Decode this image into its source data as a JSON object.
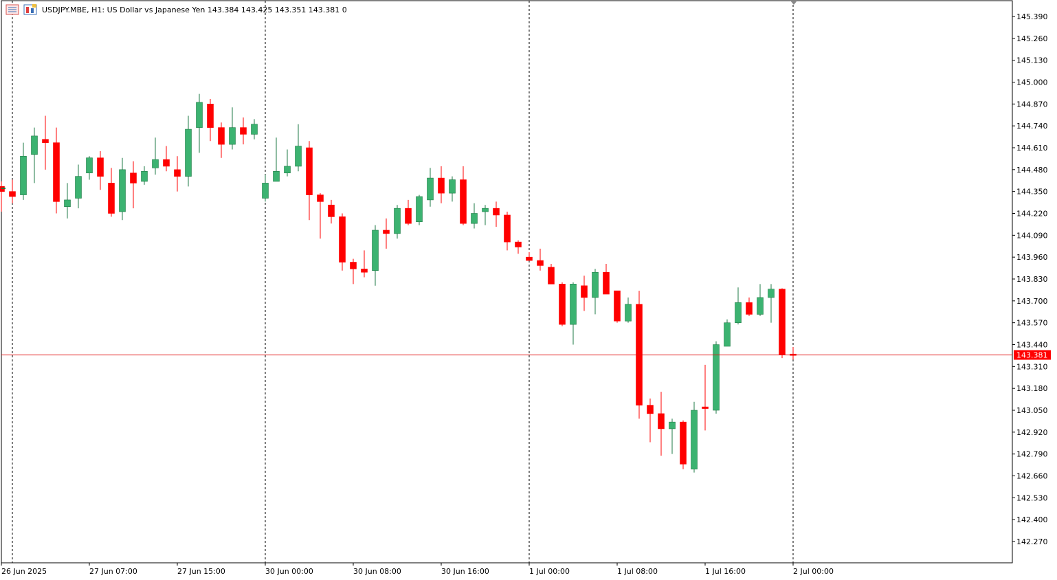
{
  "header": {
    "symbol_line": "USDJPY.MBE, H1:  US Dollar vs Japanese Yen  143.384 143.425 143.351 143.381  0"
  },
  "colors": {
    "bull": "#3cb371",
    "bear": "#ff0000",
    "bid_line": "#e01010",
    "grid": "#000000",
    "background": "#ffffff"
  },
  "icons": [
    "chart-window-icon",
    "symbol-properties-icon"
  ],
  "chart_data": {
    "type": "candlestick",
    "symbol": "USDJPY.MBE",
    "timeframe": "H1",
    "description": "US Dollar vs Japanese Yen",
    "last": {
      "open": 143.384,
      "high": 143.425,
      "low": 143.351,
      "close": 143.381,
      "volume": 0
    },
    "current_price": 143.381,
    "current_price_label": "143.381",
    "ylim": [
      142.17,
      145.42
    ],
    "y_ticks": [
      "145.390",
      "145.260",
      "145.130",
      "145.000",
      "144.870",
      "144.740",
      "144.610",
      "144.480",
      "144.350",
      "144.220",
      "144.090",
      "143.960",
      "143.830",
      "143.700",
      "143.570",
      "143.440",
      "143.310",
      "143.180",
      "143.050",
      "142.920",
      "142.790",
      "142.660",
      "142.530",
      "142.400",
      "142.270"
    ],
    "x_labels": [
      "26 Jun 2025",
      "27 Jun 07:00",
      "27 Jun 15:00",
      "30 Jun 00:00",
      "30 Jun 08:00",
      "30 Jun 16:00",
      "1 Jul 00:00",
      "1 Jul 08:00",
      "1 Jul 16:00",
      "2 Jul 00:00"
    ],
    "day_separators_bar_index": [
      1,
      24,
      48,
      72
    ],
    "ohlc": [
      [
        144.38,
        144.41,
        144.23,
        144.35
      ],
      [
        144.35,
        144.42,
        144.28,
        144.32
      ],
      [
        144.33,
        144.64,
        144.3,
        144.56
      ],
      [
        144.57,
        144.73,
        144.4,
        144.68
      ],
      [
        144.66,
        144.8,
        144.48,
        144.64
      ],
      [
        144.64,
        144.73,
        144.22,
        144.29
      ],
      [
        144.26,
        144.4,
        144.19,
        144.3
      ],
      [
        144.31,
        144.51,
        144.25,
        144.44
      ],
      [
        144.46,
        144.56,
        144.42,
        144.55
      ],
      [
        144.55,
        144.59,
        144.36,
        144.44
      ],
      [
        144.4,
        144.49,
        144.2,
        144.22
      ],
      [
        144.23,
        144.55,
        144.18,
        144.48
      ],
      [
        144.46,
        144.53,
        144.25,
        144.4
      ],
      [
        144.41,
        144.5,
        144.39,
        144.47
      ],
      [
        144.49,
        144.67,
        144.45,
        144.54
      ],
      [
        144.54,
        144.62,
        144.47,
        144.5
      ],
      [
        144.48,
        144.56,
        144.35,
        144.44
      ],
      [
        144.44,
        144.8,
        144.38,
        144.72
      ],
      [
        144.73,
        144.93,
        144.58,
        144.88
      ],
      [
        144.87,
        144.9,
        144.65,
        144.73
      ],
      [
        144.73,
        144.76,
        144.55,
        144.63
      ],
      [
        144.63,
        144.85,
        144.6,
        144.73
      ],
      [
        144.73,
        144.79,
        144.63,
        144.69
      ],
      [
        144.69,
        144.78,
        144.66,
        144.75
      ],
      [
        144.31,
        144.45,
        144.29,
        144.4
      ],
      [
        144.41,
        144.67,
        144.41,
        144.47
      ],
      [
        144.46,
        144.6,
        144.44,
        144.5
      ],
      [
        144.5,
        144.75,
        144.47,
        144.62
      ],
      [
        144.61,
        144.65,
        144.18,
        144.33
      ],
      [
        144.33,
        144.34,
        144.07,
        144.29
      ],
      [
        144.27,
        144.3,
        144.16,
        144.2
      ],
      [
        144.2,
        144.22,
        143.88,
        143.93
      ],
      [
        143.93,
        143.95,
        143.8,
        143.89
      ],
      [
        143.89,
        144.0,
        143.84,
        143.87
      ],
      [
        143.88,
        144.15,
        143.79,
        144.12
      ],
      [
        144.12,
        144.19,
        144.01,
        144.1
      ],
      [
        144.1,
        144.27,
        144.07,
        144.25
      ],
      [
        144.25,
        144.3,
        144.15,
        144.16
      ],
      [
        144.17,
        144.33,
        144.15,
        144.32
      ],
      [
        144.3,
        144.49,
        144.26,
        144.43
      ],
      [
        144.43,
        144.5,
        144.28,
        144.34
      ],
      [
        144.34,
        144.44,
        144.29,
        144.42
      ],
      [
        144.42,
        144.5,
        144.15,
        144.16
      ],
      [
        144.16,
        144.28,
        144.13,
        144.22
      ],
      [
        144.23,
        144.27,
        144.15,
        144.25
      ],
      [
        144.25,
        144.29,
        144.14,
        144.21
      ],
      [
        144.21,
        144.23,
        144.0,
        144.05
      ],
      [
        144.05,
        144.06,
        143.98,
        144.02
      ],
      [
        143.96,
        143.99,
        143.94,
        143.94
      ],
      [
        143.94,
        144.01,
        143.88,
        143.91
      ],
      [
        143.9,
        143.92,
        143.8,
        143.8
      ],
      [
        143.8,
        143.81,
        143.55,
        143.56
      ],
      [
        143.56,
        143.81,
        143.44,
        143.8
      ],
      [
        143.79,
        143.85,
        143.64,
        143.72
      ],
      [
        143.72,
        143.89,
        143.62,
        143.87
      ],
      [
        143.87,
        143.92,
        143.74,
        143.74
      ],
      [
        143.76,
        143.76,
        143.57,
        143.58
      ],
      [
        143.58,
        143.72,
        143.57,
        143.68
      ],
      [
        143.68,
        143.76,
        143.0,
        143.08
      ],
      [
        143.08,
        143.12,
        142.86,
        143.03
      ],
      [
        143.03,
        143.16,
        142.78,
        142.94
      ],
      [
        142.94,
        143.0,
        142.79,
        142.98
      ],
      [
        142.98,
        142.99,
        142.7,
        142.73
      ],
      [
        142.7,
        143.1,
        142.68,
        143.05
      ],
      [
        143.07,
        143.32,
        142.93,
        143.06
      ],
      [
        143.05,
        143.46,
        143.03,
        143.44
      ],
      [
        143.43,
        143.59,
        143.43,
        143.57
      ],
      [
        143.57,
        143.78,
        143.56,
        143.69
      ],
      [
        143.69,
        143.72,
        143.61,
        143.62
      ],
      [
        143.62,
        143.8,
        143.61,
        143.72
      ],
      [
        143.72,
        143.8,
        143.57,
        143.77
      ],
      [
        143.77,
        143.775,
        143.36,
        143.38
      ],
      [
        143.384,
        143.425,
        143.351,
        143.381
      ]
    ]
  }
}
